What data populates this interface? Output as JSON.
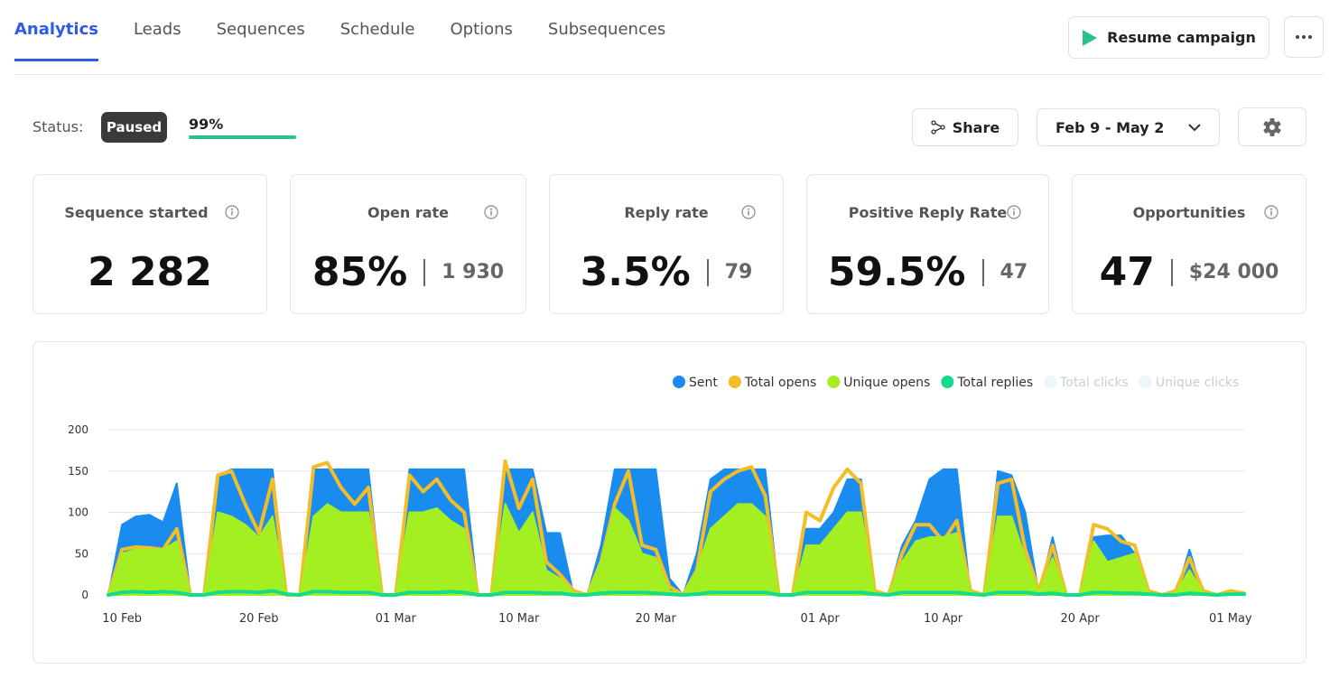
{
  "tabs": [
    "Analytics",
    "Leads",
    "Sequences",
    "Schedule",
    "Options",
    "Subsequences"
  ],
  "active_tab_index": 0,
  "resume_button": "Resume campaign",
  "status": {
    "label": "Status:",
    "state": "Paused",
    "progress": {
      "value": 99,
      "label": "99%"
    }
  },
  "share_button": "Share",
  "date_range": "Feb 9 - May 2",
  "cards": [
    {
      "title": "Sequence started",
      "value": "2 282"
    },
    {
      "title": "Open rate",
      "value": "85%",
      "detail": "1 930"
    },
    {
      "title": "Reply rate",
      "value": "3.5%",
      "detail": "79"
    },
    {
      "title": "Positive Reply Rate",
      "value": "59.5%",
      "detail": "47"
    },
    {
      "title": "Opportunities",
      "value": "47",
      "detail": "$24 000"
    }
  ],
  "chart_data": {
    "type": "area",
    "categories": [
      null,
      "10 Feb",
      null,
      null,
      null,
      null,
      null,
      null,
      null,
      null,
      null,
      "20 Feb",
      null,
      null,
      null,
      null,
      null,
      null,
      null,
      null,
      null,
      "01 Mar",
      null,
      null,
      null,
      null,
      null,
      null,
      null,
      null,
      "10 Mar",
      null,
      null,
      null,
      null,
      null,
      null,
      null,
      null,
      null,
      "20 Mar",
      null,
      null,
      null,
      null,
      null,
      null,
      null,
      null,
      null,
      null,
      null,
      "01 Apr",
      null,
      null,
      null,
      null,
      null,
      null,
      null,
      null,
      "10 Apr",
      null,
      null,
      null,
      null,
      null,
      null,
      null,
      null,
      null,
      "20 Apr",
      null,
      null,
      null,
      null,
      null,
      null,
      null,
      null,
      null,
      null,
      "01 May",
      null
    ],
    "ylim": [
      0,
      200
    ],
    "yticks": [
      0,
      50,
      100,
      150,
      200
    ],
    "grid": true,
    "series": [
      {
        "name": "Sent",
        "color": "#1a8cf0",
        "style": "area",
        "values": [
          0,
          85,
          95,
          97,
          88,
          135,
          0,
          0,
          145,
          152,
          152,
          152,
          152,
          0,
          0,
          152,
          152,
          152,
          152,
          152,
          0,
          0,
          152,
          152,
          152,
          152,
          152,
          0,
          0,
          152,
          152,
          152,
          75,
          75,
          0,
          0,
          60,
          152,
          152,
          152,
          152,
          20,
          0,
          50,
          140,
          152,
          152,
          152,
          152,
          0,
          0,
          80,
          80,
          100,
          140,
          140,
          0,
          0,
          60,
          90,
          140,
          152,
          152,
          0,
          0,
          150,
          145,
          100,
          0,
          70,
          0,
          0,
          70,
          72,
          72,
          50,
          0,
          0,
          0,
          55,
          0,
          0,
          5,
          0
        ]
      },
      {
        "name": "Total opens",
        "color": "#f2bd27",
        "style": "line",
        "values": [
          0,
          55,
          58,
          57,
          55,
          80,
          0,
          0,
          145,
          150,
          110,
          75,
          140,
          0,
          0,
          155,
          160,
          130,
          110,
          130,
          0,
          0,
          145,
          125,
          140,
          115,
          100,
          0,
          0,
          162,
          105,
          140,
          40,
          25,
          5,
          0,
          40,
          110,
          150,
          60,
          55,
          10,
          0,
          30,
          125,
          140,
          150,
          155,
          120,
          0,
          0,
          100,
          90,
          130,
          152,
          135,
          5,
          0,
          50,
          85,
          85,
          65,
          90,
          5,
          0,
          135,
          140,
          55,
          5,
          60,
          0,
          0,
          85,
          80,
          65,
          60,
          5,
          0,
          5,
          45,
          5,
          0,
          5,
          2
        ]
      },
      {
        "name": "Unique opens",
        "color": "#a3ef22",
        "style": "area",
        "values": [
          0,
          50,
          55,
          55,
          55,
          65,
          0,
          0,
          100,
          95,
          85,
          70,
          95,
          0,
          0,
          95,
          110,
          100,
          100,
          100,
          0,
          0,
          100,
          100,
          105,
          90,
          80,
          0,
          0,
          110,
          75,
          100,
          30,
          20,
          3,
          0,
          40,
          105,
          90,
          50,
          45,
          5,
          0,
          30,
          80,
          95,
          110,
          110,
          95,
          0,
          0,
          60,
          60,
          80,
          100,
          100,
          3,
          0,
          40,
          65,
          70,
          70,
          75,
          3,
          0,
          95,
          95,
          45,
          3,
          45,
          0,
          0,
          65,
          40,
          45,
          50,
          3,
          0,
          3,
          30,
          3,
          0,
          3,
          1
        ]
      },
      {
        "name": "Total replies",
        "color": "#14dc8c",
        "style": "line",
        "values": [
          0,
          3,
          4,
          3,
          4,
          3,
          0,
          0,
          3,
          4,
          4,
          3,
          5,
          1,
          0,
          4,
          4,
          3,
          3,
          3,
          0,
          0,
          3,
          3,
          3,
          4,
          3,
          0,
          0,
          3,
          3,
          3,
          2,
          2,
          0,
          0,
          2,
          3,
          3,
          3,
          2,
          1,
          0,
          1,
          3,
          3,
          3,
          3,
          3,
          0,
          0,
          3,
          3,
          3,
          3,
          3,
          1,
          0,
          3,
          3,
          3,
          3,
          3,
          1,
          0,
          3,
          3,
          3,
          1,
          2,
          0,
          0,
          3,
          3,
          2,
          2,
          1,
          0,
          0,
          2,
          1,
          0,
          1,
          1
        ]
      },
      {
        "name": "Total clicks",
        "color": "#e9f7f8",
        "visible": false
      },
      {
        "name": "Unique clicks",
        "color": "#e9f7f8",
        "visible": false
      }
    ]
  }
}
